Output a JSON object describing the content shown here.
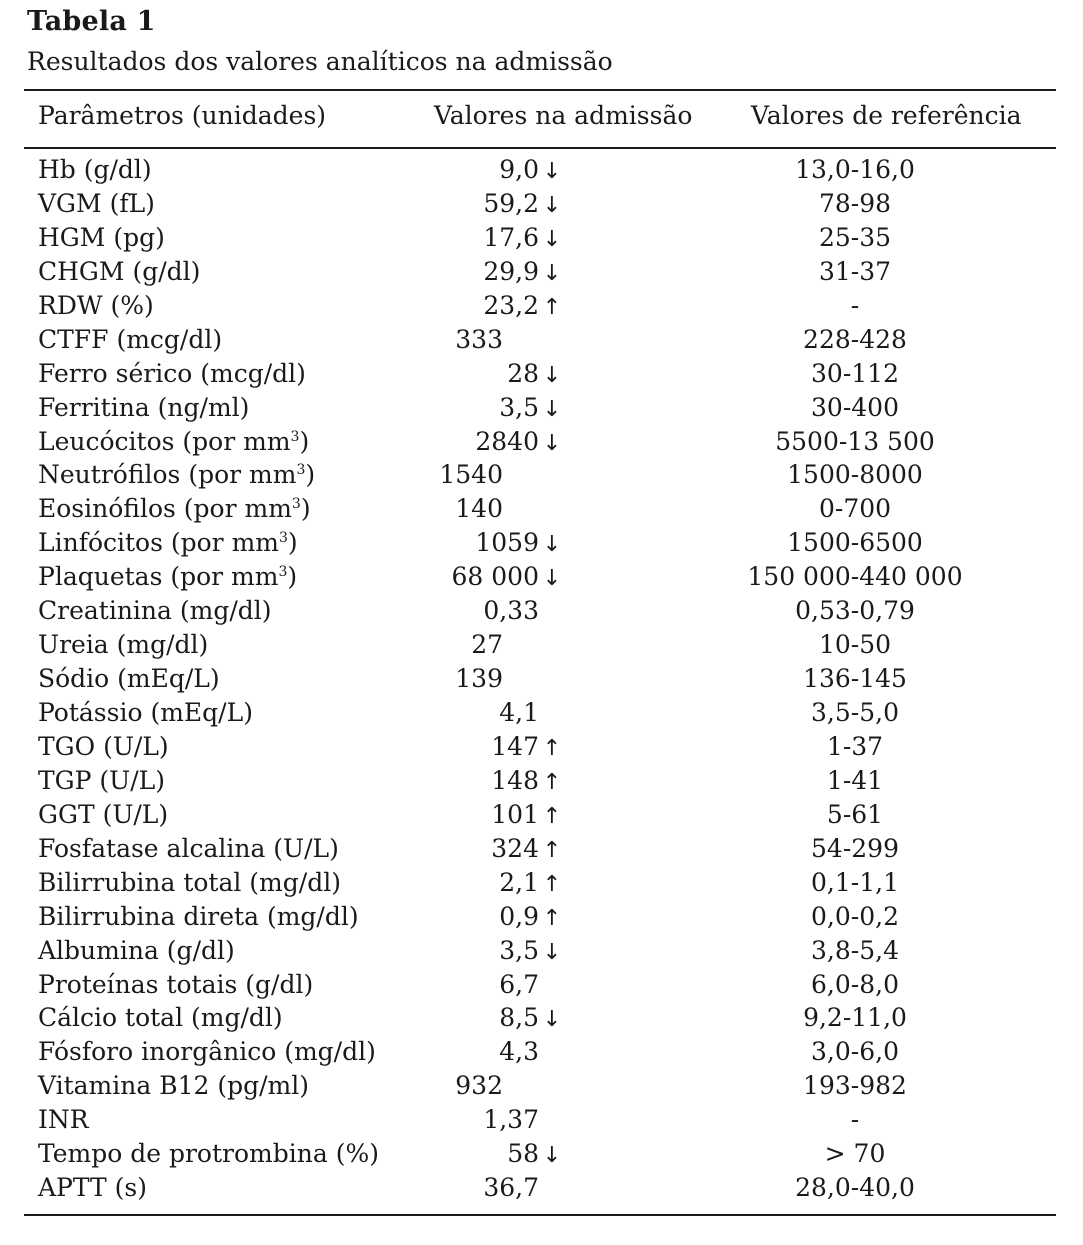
{
  "title": "Tabela 1",
  "caption": "Resultados dos valores analíticos na admissão",
  "headers": {
    "param": "Parâmetros (unidades)",
    "admission": "Valores na admissão",
    "reference": "Valores de referência"
  },
  "rows": [
    {
      "param": "Hb (g/dl)",
      "value": "9,0",
      "flag": "↓",
      "ref": "13,0-16,0",
      "indent": 1
    },
    {
      "param": "VGM (fL)",
      "value": "59,2",
      "flag": "↓",
      "ref": "78-98",
      "indent": 1
    },
    {
      "param": "HGM (pg)",
      "value": "17,6",
      "flag": "↓",
      "ref": "25-35",
      "indent": 1
    },
    {
      "param": "CHGM (g/dl)",
      "value": "29,9",
      "flag": "↓",
      "ref": "31-37",
      "indent": 1
    },
    {
      "param": "RDW (%)",
      "value": "23,2",
      "flag": "↑",
      "ref": "-",
      "indent": 1
    },
    {
      "param": "CTFF (mcg/dl)",
      "value": "333",
      "flag": "",
      "ref": "228-428",
      "indent": 0
    },
    {
      "param": "Ferro sérico (mcg/dl)",
      "value": "28",
      "flag": "↓",
      "ref": "30-112",
      "indent": 1
    },
    {
      "param": "Ferritina (ng/ml)",
      "value": "3,5",
      "flag": "↓",
      "ref": "30-400",
      "indent": 1
    },
    {
      "param": "Leucócitos (por mm³)",
      "value": "2840",
      "flag": "↓",
      "ref": "5500-13 500",
      "indent": 0
    },
    {
      "param": "Neutrófilos (por mm³)",
      "value": "1540",
      "flag": "",
      "ref": "1500-8000",
      "indent": 0
    },
    {
      "param": "Eosinófilos (por mm³)",
      "value": "140",
      "flag": "",
      "ref": "0-700",
      "indent": 0
    },
    {
      "param": "Linfócitos (por mm³)",
      "value": "1059",
      "flag": "↓",
      "ref": "1500-6500",
      "indent": 0
    },
    {
      "param": "Plaquetas (por mm³)",
      "value": "68 000",
      "flag": "↓",
      "ref": "150 000-440 000",
      "indent": 0
    },
    {
      "param": "Creatinina (mg/dl)",
      "value": "0,33",
      "flag": "",
      "ref": "0,53-0,79",
      "indent": 1
    },
    {
      "param": "Ureia (mg/dl)",
      "value": "27",
      "flag": "",
      "ref": "10-50",
      "indent": 0
    },
    {
      "param": "Sódio (mEq/L)",
      "value": "139",
      "flag": "",
      "ref": "136-145",
      "indent": 0
    },
    {
      "param": "Potássio (mEq/L)",
      "value": "4,1",
      "flag": "",
      "ref": "3,5-5,0",
      "indent": 1
    },
    {
      "param": "TGO (U/L)",
      "value": "147",
      "flag": "↑",
      "ref": "1-37",
      "indent": 0
    },
    {
      "param": "TGP (U/L)",
      "value": "148",
      "flag": "↑",
      "ref": "1-41",
      "indent": 0
    },
    {
      "param": "GGT (U/L)",
      "value": "101",
      "flag": "↑",
      "ref": "5-61",
      "indent": 0
    },
    {
      "param": "Fosfatase alcalina (U/L)",
      "value": "324",
      "flag": "↑",
      "ref": "54-299",
      "indent": 0
    },
    {
      "param": "Bilirrubina total (mg/dl)",
      "value": "2,1",
      "flag": "↑",
      "ref": "0,1-1,1",
      "indent": 1
    },
    {
      "param": "Bilirrubina direta (mg/dl)",
      "value": "0,9",
      "flag": "↑",
      "ref": "0,0-0,2",
      "indent": 1
    },
    {
      "param": "Albumina (g/dl)",
      "value": "3,5",
      "flag": "↓",
      "ref": "3,8-5,4",
      "indent": 1
    },
    {
      "param": "Proteínas totais (g/dl)",
      "value": "6,7",
      "flag": "",
      "ref": "6,0-8,0",
      "indent": 1
    },
    {
      "param": "Cálcio total (mg/dl)",
      "value": "8,5",
      "flag": "↓",
      "ref": "9,2-11,0",
      "indent": 1
    },
    {
      "param": "Fósforo inorgânico (mg/dl)",
      "value": "4,3",
      "flag": "",
      "ref": "3,0-6,0",
      "indent": 1
    },
    {
      "param": "Vitamina B12 (pg/ml)",
      "value": "932",
      "flag": "",
      "ref": "193-982",
      "indent": 0
    },
    {
      "param": "INR",
      "value": "1,37",
      "flag": "",
      "ref": "-",
      "indent": 1
    },
    {
      "param": "Tempo de protrombina (%)",
      "value": "58",
      "flag": "↓",
      "ref": "> 70",
      "indent": 0
    },
    {
      "param": "APTT (s)",
      "value": "36,7",
      "flag": "",
      "ref": "28,0-40,0",
      "indent": 1
    }
  ]
}
